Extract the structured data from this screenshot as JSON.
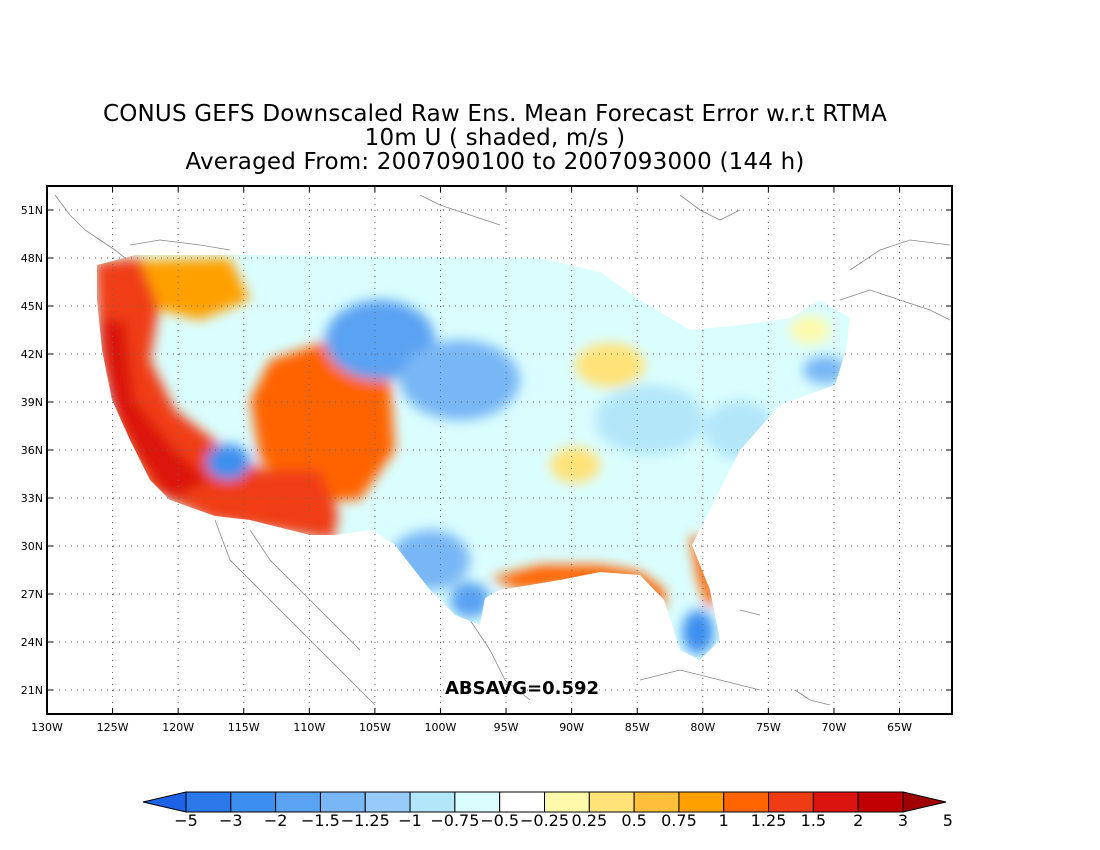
{
  "title": {
    "line1": "CONUS GEFS Downscaled Raw Ens. Mean Forecast Error w.r.t RTMA",
    "line2": "10m U ( shaded, m/s )",
    "line3": "Averaged From: 2007090100 to 2007093000 (144 h)"
  },
  "map": {
    "lon_range": [
      -130,
      -61
    ],
    "lat_range": [
      19.5,
      52.5
    ],
    "lat_labels": [
      "51N",
      "48N",
      "45N",
      "42N",
      "39N",
      "36N",
      "33N",
      "30N",
      "27N",
      "24N",
      "21N"
    ],
    "lat_values": [
      51,
      48,
      45,
      42,
      39,
      36,
      33,
      30,
      27,
      24,
      21
    ],
    "lon_labels": [
      "130W",
      "125W",
      "120W",
      "115W",
      "110W",
      "105W",
      "100W",
      "95W",
      "90W",
      "85W",
      "80W",
      "75W",
      "70W",
      "65W"
    ],
    "lon_values": [
      -130,
      -125,
      -120,
      -115,
      -110,
      -105,
      -100,
      -95,
      -90,
      -85,
      -80,
      -75,
      -70,
      -65
    ],
    "grid": "dotted",
    "annotation": "ABSAVG=0.592"
  },
  "colorbar": {
    "labels": [
      "-5",
      "-3",
      "-2",
      "-1.5",
      "-1.25",
      "-1",
      "-0.75",
      "-0.5",
      "-0.25",
      "0.25",
      "0.5",
      "0.75",
      "1",
      "1.25",
      "1.5",
      "2",
      "3",
      "5"
    ],
    "colors": [
      "#1e62e6",
      "#2b78ea",
      "#3d8fef",
      "#5aa2f2",
      "#78b6f5",
      "#98cbf8",
      "#b4e6fa",
      "#dafefe",
      "#ffffff",
      "#fffaaa",
      "#ffe278",
      "#ffc03c",
      "#ffa000",
      "#ff6400",
      "#f03c14",
      "#dc1410",
      "#c00000",
      "#a00000"
    ]
  }
}
